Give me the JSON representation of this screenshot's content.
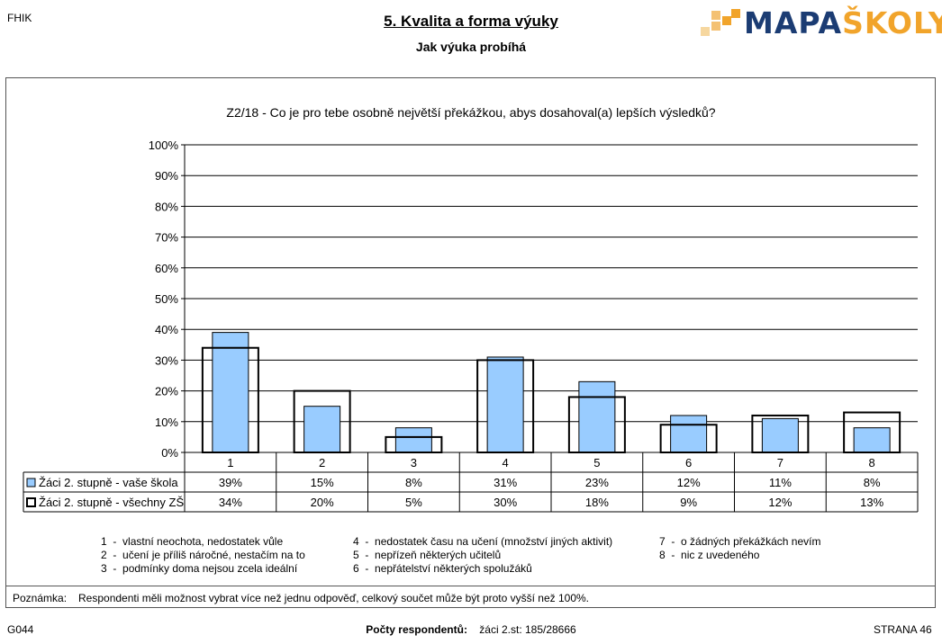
{
  "header": {
    "left_code": "FHIK",
    "title": "5. Kvalita a forma výuky",
    "subtitle": "Jak výuka probíhá",
    "logo": {
      "part1": "MAPA",
      "part2": "ŠKOLY",
      "color1": "#1b3c73",
      "color2": "#f1a42b"
    }
  },
  "chart_data": {
    "type": "bar",
    "title": "Z2/18 - Co je pro tebe osobně největší překážkou, abys dosahoval(a) lepších výsledků?",
    "categories": [
      "1",
      "2",
      "3",
      "4",
      "5",
      "6",
      "7",
      "8"
    ],
    "ylim": [
      0,
      100
    ],
    "yticks": [
      "0%",
      "10%",
      "20%",
      "30%",
      "40%",
      "50%",
      "60%",
      "70%",
      "80%",
      "90%",
      "100%"
    ],
    "grid": true,
    "series": [
      {
        "name": "Žáci 2. stupně - vaše škola",
        "values": [
          39,
          15,
          8,
          31,
          23,
          12,
          11,
          8
        ],
        "labels": [
          "39%",
          "15%",
          "8%",
          "31%",
          "23%",
          "12%",
          "11%",
          "8%"
        ],
        "color": "#99ccff"
      },
      {
        "name": "Žáci 2. stupně - všechny ZŠ",
        "values": [
          34,
          20,
          5,
          30,
          18,
          9,
          12,
          13
        ],
        "labels": [
          "34%",
          "20%",
          "5%",
          "30%",
          "18%",
          "9%",
          "12%",
          "13%"
        ],
        "color": "none"
      }
    ]
  },
  "legend": [
    {
      "num": "1",
      "text": "vlastní neochota, nedostatek vůle"
    },
    {
      "num": "2",
      "text": "učení je příliš náročné, nestačím na to"
    },
    {
      "num": "3",
      "text": "podmínky doma nejsou zcela ideální"
    },
    {
      "num": "4",
      "text": "nedostatek času na učení (množství jiných aktivit)"
    },
    {
      "num": "5",
      "text": "nepřízeň některých učitelů"
    },
    {
      "num": "6",
      "text": "nepřátelství některých spolužáků"
    },
    {
      "num": "7",
      "text": "o žádných překážkách nevím"
    },
    {
      "num": "8",
      "text": "nic z uvedeného"
    }
  ],
  "note": {
    "label": "Poznámka:",
    "text": "Respondenti měli možnost vybrat více než jednu odpověď, celkový součet může být proto vyšší než 100%."
  },
  "footer": {
    "left": "G044",
    "respondents_label": "Počty respondentů:",
    "respondents_value": "žáci 2.st: 185/28666",
    "page": "STRANA 46"
  }
}
